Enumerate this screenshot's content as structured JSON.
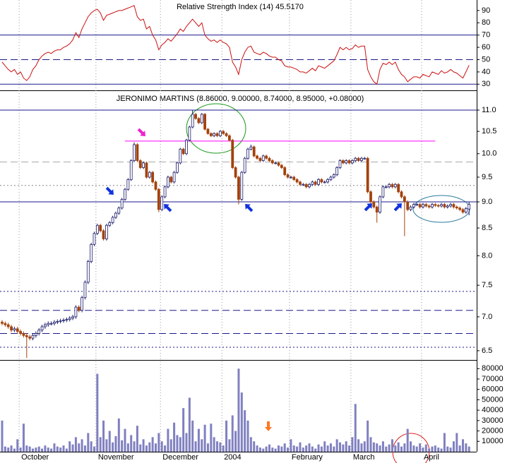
{
  "chart_data": [
    {
      "type": "line",
      "title": "Relative Strength Index (14) 45.5170",
      "color": "#cc1111",
      "values": [
        48,
        45,
        42,
        40,
        42,
        38,
        40,
        35,
        33,
        36,
        42,
        45,
        50,
        53,
        55,
        56,
        55,
        57,
        58,
        58,
        60,
        61,
        63,
        66,
        72,
        68,
        75,
        80,
        85,
        88,
        90,
        91,
        88,
        82,
        86,
        87,
        88,
        89,
        90,
        90,
        91,
        92,
        93,
        94,
        85,
        82,
        83,
        75,
        77,
        70,
        66,
        58,
        62,
        64,
        67,
        65,
        68,
        71,
        75,
        73,
        77,
        80,
        83,
        80,
        77,
        80,
        70,
        67,
        65,
        66,
        64,
        66,
        64,
        63,
        60,
        48,
        44,
        38,
        50,
        56,
        60,
        61,
        56,
        55,
        54,
        56,
        55,
        53,
        52,
        52,
        50,
        49,
        45,
        44,
        44,
        43,
        42,
        40,
        40,
        39,
        41,
        43,
        41,
        45,
        44,
        43,
        45,
        47,
        49,
        54,
        60,
        58,
        60,
        58,
        59,
        62,
        60,
        61,
        61,
        42,
        36,
        32,
        30,
        42,
        47,
        46,
        48,
        46,
        48,
        42,
        38,
        36,
        32,
        34,
        36,
        36,
        35,
        38,
        37,
        36,
        40,
        39,
        38,
        41,
        39,
        40,
        42,
        40,
        39,
        37,
        35,
        40,
        45.517
      ],
      "ylim": [
        25,
        97.4
      ],
      "yticks": [
        30,
        40,
        50,
        60,
        70,
        80,
        90
      ],
      "reference_lines": [
        {
          "value": 70,
          "style": "solid",
          "color": "#1a1a8c"
        },
        {
          "value": 50,
          "style": "dashed",
          "color": "#1a1a8c"
        },
        {
          "value": 30,
          "style": "solid",
          "color": "#1a1a8c"
        }
      ]
    },
    {
      "type": "candlestick",
      "title": "JERONIMO MARTINS (8.86000, 9.00000, 8.74000, 8.95000, +0.08000)",
      "categories": [
        null,
        null,
        null,
        null,
        null,
        null,
        "October",
        null,
        null,
        null,
        null,
        null,
        null,
        null,
        null,
        null,
        null,
        null,
        null,
        null,
        null,
        null,
        null,
        null,
        null,
        null,
        null,
        null,
        null,
        null,
        null,
        "November",
        null,
        null,
        null,
        null,
        null,
        null,
        null,
        null,
        null,
        null,
        null,
        null,
        null,
        null,
        null,
        null,
        null,
        null,
        null,
        null,
        "December",
        null,
        null,
        null,
        null,
        null,
        null,
        null,
        null,
        null,
        null,
        null,
        null,
        null,
        null,
        null,
        null,
        null,
        null,
        null,
        "2004",
        null,
        null,
        null,
        null,
        null,
        null,
        null,
        null,
        null,
        null,
        null,
        null,
        null,
        null,
        null,
        null,
        null,
        null,
        null,
        null,
        null,
        "February",
        null,
        null,
        null,
        null,
        null,
        null,
        null,
        null,
        null,
        null,
        null,
        null,
        null,
        null,
        null,
        null,
        null,
        null,
        null,
        "March",
        null,
        null,
        null,
        null,
        null,
        null,
        null,
        null,
        null,
        null,
        null,
        null,
        null,
        null,
        null,
        null,
        null,
        null,
        null,
        null,
        null,
        null,
        "April",
        null,
        null,
        null,
        null,
        null,
        null,
        null,
        null,
        null,
        null,
        null,
        null,
        null,
        null,
        null
      ],
      "open": [
        6.92,
        6.9,
        6.88,
        6.85,
        6.8,
        6.82,
        6.78,
        6.75,
        6.72,
        6.7,
        6.68,
        6.72,
        6.75,
        6.8,
        6.85,
        6.88,
        6.9,
        6.9,
        6.92,
        6.93,
        6.94,
        6.95,
        6.96,
        6.98,
        7.0,
        7.15,
        7.1,
        7.3,
        7.55,
        7.9,
        8.2,
        8.4,
        8.55,
        8.45,
        8.3,
        8.55,
        8.6,
        8.7,
        8.78,
        8.88,
        9.05,
        9.25,
        9.45,
        9.85,
        10.2,
        9.85,
        9.7,
        9.8,
        9.5,
        9.6,
        9.4,
        9.25,
        8.85,
        9.1,
        9.3,
        9.5,
        9.4,
        9.6,
        9.8,
        10.1,
        10.0,
        10.3,
        10.6,
        10.9,
        10.8,
        10.7,
        10.9,
        10.55,
        10.45,
        10.4,
        10.45,
        10.4,
        10.5,
        10.45,
        10.4,
        10.3,
        9.7,
        9.5,
        9.05,
        9.6,
        9.9,
        10.1,
        10.15,
        9.95,
        9.9,
        9.85,
        9.95,
        9.9,
        9.85,
        9.8,
        9.8,
        9.75,
        9.7,
        9.55,
        9.5,
        9.5,
        9.45,
        9.4,
        9.35,
        9.35,
        9.3,
        9.35,
        9.4,
        9.35,
        9.45,
        9.4,
        9.4,
        9.45,
        9.5,
        9.55,
        9.7,
        9.85,
        9.8,
        9.85,
        9.8,
        9.85,
        9.9,
        9.85,
        9.9,
        9.9,
        9.2,
        9.0,
        8.9,
        8.8,
        9.1,
        9.3,
        9.3,
        9.35,
        9.3,
        9.35,
        9.2,
        9.1,
        9.0,
        8.85,
        8.9,
        8.95,
        8.95,
        8.9,
        8.95,
        8.92,
        8.9,
        8.95,
        8.93,
        8.92,
        8.95,
        8.9,
        8.92,
        8.95,
        8.9,
        8.88,
        8.85,
        8.8,
        8.86
      ],
      "high": [
        6.95,
        6.93,
        6.91,
        6.88,
        6.85,
        6.85,
        6.81,
        6.78,
        6.75,
        6.73,
        6.75,
        6.78,
        6.83,
        6.88,
        6.91,
        6.93,
        6.93,
        6.95,
        6.96,
        6.97,
        6.98,
        6.99,
        7.01,
        7.03,
        7.18,
        7.18,
        7.33,
        7.58,
        7.93,
        8.23,
        8.43,
        8.58,
        8.58,
        8.48,
        8.58,
        8.63,
        8.73,
        8.81,
        8.91,
        9.08,
        9.28,
        9.48,
        9.88,
        10.25,
        10.23,
        9.88,
        9.83,
        9.83,
        9.63,
        9.63,
        9.43,
        9.28,
        9.13,
        9.33,
        9.53,
        9.53,
        9.63,
        9.83,
        10.13,
        10.13,
        10.33,
        10.63,
        11.0,
        10.93,
        10.83,
        10.93,
        10.93,
        10.58,
        10.48,
        10.48,
        10.48,
        10.53,
        10.53,
        10.48,
        10.43,
        10.33,
        9.73,
        9.53,
        9.63,
        9.93,
        10.13,
        10.2,
        10.18,
        9.98,
        9.93,
        9.98,
        9.98,
        9.93,
        9.88,
        9.83,
        9.83,
        9.78,
        9.73,
        9.58,
        9.53,
        9.53,
        9.48,
        9.43,
        9.38,
        9.38,
        9.38,
        9.43,
        9.43,
        9.48,
        9.48,
        9.43,
        9.48,
        9.53,
        9.58,
        9.73,
        9.88,
        9.88,
        9.88,
        9.88,
        9.88,
        9.93,
        9.93,
        9.93,
        9.93,
        9.93,
        9.23,
        9.03,
        8.93,
        9.13,
        9.33,
        9.33,
        9.38,
        9.38,
        9.38,
        9.38,
        9.23,
        9.13,
        9.03,
        8.93,
        8.98,
        8.98,
        8.98,
        8.98,
        8.98,
        8.95,
        8.98,
        8.98,
        8.96,
        8.98,
        8.98,
        8.95,
        8.98,
        8.98,
        8.93,
        8.91,
        8.88,
        8.9,
        9.0
      ],
      "low": [
        6.87,
        6.85,
        6.82,
        6.77,
        6.77,
        6.75,
        6.72,
        6.69,
        6.4,
        6.65,
        6.65,
        6.69,
        6.72,
        6.77,
        6.82,
        6.85,
        6.87,
        6.87,
        6.89,
        6.9,
        6.91,
        6.92,
        6.93,
        6.95,
        6.97,
        7.07,
        7.07,
        7.27,
        7.52,
        7.87,
        8.17,
        8.37,
        8.42,
        8.27,
        8.27,
        8.52,
        8.57,
        8.67,
        8.75,
        8.85,
        9.02,
        9.22,
        9.42,
        9.82,
        9.82,
        9.67,
        9.67,
        9.47,
        9.47,
        9.37,
        9.22,
        8.8,
        8.82,
        9.07,
        9.27,
        9.37,
        9.37,
        9.57,
        9.77,
        9.97,
        9.97,
        10.27,
        10.57,
        10.77,
        10.67,
        10.67,
        10.52,
        10.42,
        10.37,
        10.37,
        10.37,
        10.37,
        10.42,
        10.37,
        10.27,
        9.67,
        9.47,
        8.95,
        9.02,
        9.57,
        9.87,
        10.07,
        9.92,
        9.87,
        9.82,
        9.82,
        9.87,
        9.82,
        9.77,
        9.77,
        9.72,
        9.67,
        9.52,
        9.47,
        9.47,
        9.42,
        9.37,
        9.32,
        9.32,
        9.27,
        9.27,
        9.32,
        9.32,
        9.32,
        9.37,
        9.37,
        9.37,
        9.42,
        9.47,
        9.52,
        9.67,
        9.77,
        9.77,
        9.77,
        9.77,
        9.82,
        9.82,
        9.82,
        9.87,
        9.17,
        8.97,
        8.87,
        8.6,
        8.77,
        9.07,
        9.27,
        9.27,
        9.27,
        9.27,
        9.17,
        9.07,
        8.35,
        8.82,
        8.82,
        8.87,
        8.92,
        8.87,
        8.87,
        8.89,
        8.87,
        8.87,
        8.9,
        8.89,
        8.89,
        8.87,
        8.87,
        8.89,
        8.87,
        8.85,
        8.82,
        8.77,
        8.77,
        8.74
      ],
      "close": [
        6.9,
        6.88,
        6.85,
        6.8,
        6.82,
        6.78,
        6.75,
        6.72,
        6.7,
        6.68,
        6.72,
        6.75,
        6.8,
        6.85,
        6.88,
        6.9,
        6.9,
        6.92,
        6.93,
        6.94,
        6.95,
        6.96,
        6.98,
        7.0,
        7.15,
        7.1,
        7.3,
        7.55,
        7.9,
        8.2,
        8.4,
        8.55,
        8.45,
        8.3,
        8.55,
        8.6,
        8.7,
        8.78,
        8.88,
        9.05,
        9.25,
        9.45,
        9.85,
        10.2,
        9.85,
        9.7,
        9.8,
        9.5,
        9.6,
        9.4,
        9.25,
        8.85,
        9.1,
        9.3,
        9.5,
        9.4,
        9.6,
        9.8,
        10.1,
        10.0,
        10.3,
        10.6,
        10.9,
        10.8,
        10.7,
        10.9,
        10.55,
        10.45,
        10.4,
        10.45,
        10.4,
        10.5,
        10.45,
        10.4,
        10.3,
        9.7,
        9.5,
        9.05,
        9.6,
        9.9,
        10.1,
        10.15,
        9.95,
        9.9,
        9.85,
        9.95,
        9.9,
        9.85,
        9.8,
        9.8,
        9.75,
        9.7,
        9.55,
        9.5,
        9.5,
        9.45,
        9.4,
        9.35,
        9.35,
        9.3,
        9.35,
        9.4,
        9.35,
        9.45,
        9.4,
        9.4,
        9.45,
        9.5,
        9.55,
        9.7,
        9.85,
        9.8,
        9.85,
        9.8,
        9.85,
        9.9,
        9.85,
        9.9,
        9.9,
        9.2,
        9.0,
        8.9,
        8.8,
        9.1,
        9.3,
        9.3,
        9.35,
        9.3,
        9.35,
        9.2,
        9.1,
        9.0,
        8.85,
        8.9,
        8.95,
        8.95,
        8.9,
        8.95,
        8.92,
        8.9,
        8.95,
        8.93,
        8.92,
        8.95,
        8.9,
        8.92,
        8.95,
        8.9,
        8.88,
        8.85,
        8.8,
        8.87,
        8.95
      ],
      "up_color": "#ffffff",
      "down_color": "#a3420c",
      "outline_color": "#1c1c6c",
      "ylim": [
        6.37,
        11.45
      ],
      "log_scale": true,
      "yticks": [
        6.5,
        {
          "value": 7,
          "label": "7.0"
        },
        7.5,
        {
          "value": 8,
          "label": "8.0"
        },
        8.5,
        {
          "value": 9,
          "label": "9.0"
        },
        9.5,
        {
          "value": 10,
          "label": "10.0"
        },
        10.5,
        {
          "value": 11,
          "label": "11.0"
        }
      ],
      "levels": [
        {
          "value": 11,
          "style": "solid",
          "color": "#1a1a8c"
        },
        {
          "value": 10.28,
          "style": "solid",
          "color": "#ff00ff",
          "from": 40,
          "to": 141
        },
        {
          "value": 9.82,
          "style": "dashed",
          "color": "#aaaaaa"
        },
        {
          "value": 9.33,
          "style": "dotted",
          "color": "#888888"
        },
        {
          "value": 9,
          "style": "solid",
          "color": "#1a1a8c"
        },
        {
          "value": 7.4,
          "style": "dotted",
          "color": "#1a1a8c"
        },
        {
          "value": 7.1,
          "style": "dashed",
          "color": "#1a1a8c"
        },
        {
          "value": 6.75,
          "style": "dashed",
          "color": "#1a1a8c"
        },
        {
          "value": 6.55,
          "style": "dotted",
          "color": "#1a1a8c"
        }
      ]
    },
    {
      "type": "bar",
      "color": "#8080c0",
      "values": [
        30000,
        5000,
        4000,
        6000,
        3000,
        12000,
        4000,
        27000,
        6000,
        5000,
        3000,
        4000,
        5000,
        3000,
        6000,
        4000,
        3000,
        8000,
        5000,
        4000,
        6000,
        3000,
        10000,
        7000,
        14000,
        8000,
        12000,
        6000,
        18000,
        10000,
        5000,
        75000,
        14000,
        30000,
        12000,
        20000,
        9000,
        15000,
        32000,
        11000,
        22000,
        8000,
        16000,
        10000,
        25000,
        7000,
        12000,
        6000,
        9000,
        14000,
        8000,
        18000,
        10000,
        6000,
        22000,
        12000,
        28000,
        16000,
        14000,
        42000,
        18000,
        52000,
        30000,
        10000,
        22000,
        12000,
        26000,
        8000,
        27000,
        14000,
        10000,
        9000,
        6000,
        30000,
        12000,
        35000,
        20000,
        80000,
        57000,
        40000,
        30000,
        14000,
        10000,
        6000,
        4000,
        3000,
        5000,
        7000,
        4000,
        3000,
        6000,
        5000,
        8000,
        4000,
        12000,
        6000,
        5000,
        9000,
        4000,
        6000,
        8000,
        5000,
        3000,
        7000,
        5000,
        10000,
        6000,
        8000,
        5000,
        12000,
        9000,
        7000,
        10000,
        6000,
        14000,
        46000,
        12000,
        8000,
        10000,
        30000,
        14000,
        9000,
        8000,
        6000,
        10000,
        5000,
        7000,
        12000,
        6000,
        9000,
        5000,
        8000,
        22000,
        10000,
        6000,
        5000,
        8000,
        4000,
        7000,
        3000,
        5000,
        6000,
        4000,
        3000,
        18000,
        5000,
        4000,
        10000,
        18000,
        6000,
        12000,
        8000,
        5000
      ],
      "ylim": [
        0,
        87000
      ],
      "yticks": [
        10000,
        20000,
        30000,
        40000,
        50000,
        60000,
        70000,
        80000
      ]
    }
  ]
}
